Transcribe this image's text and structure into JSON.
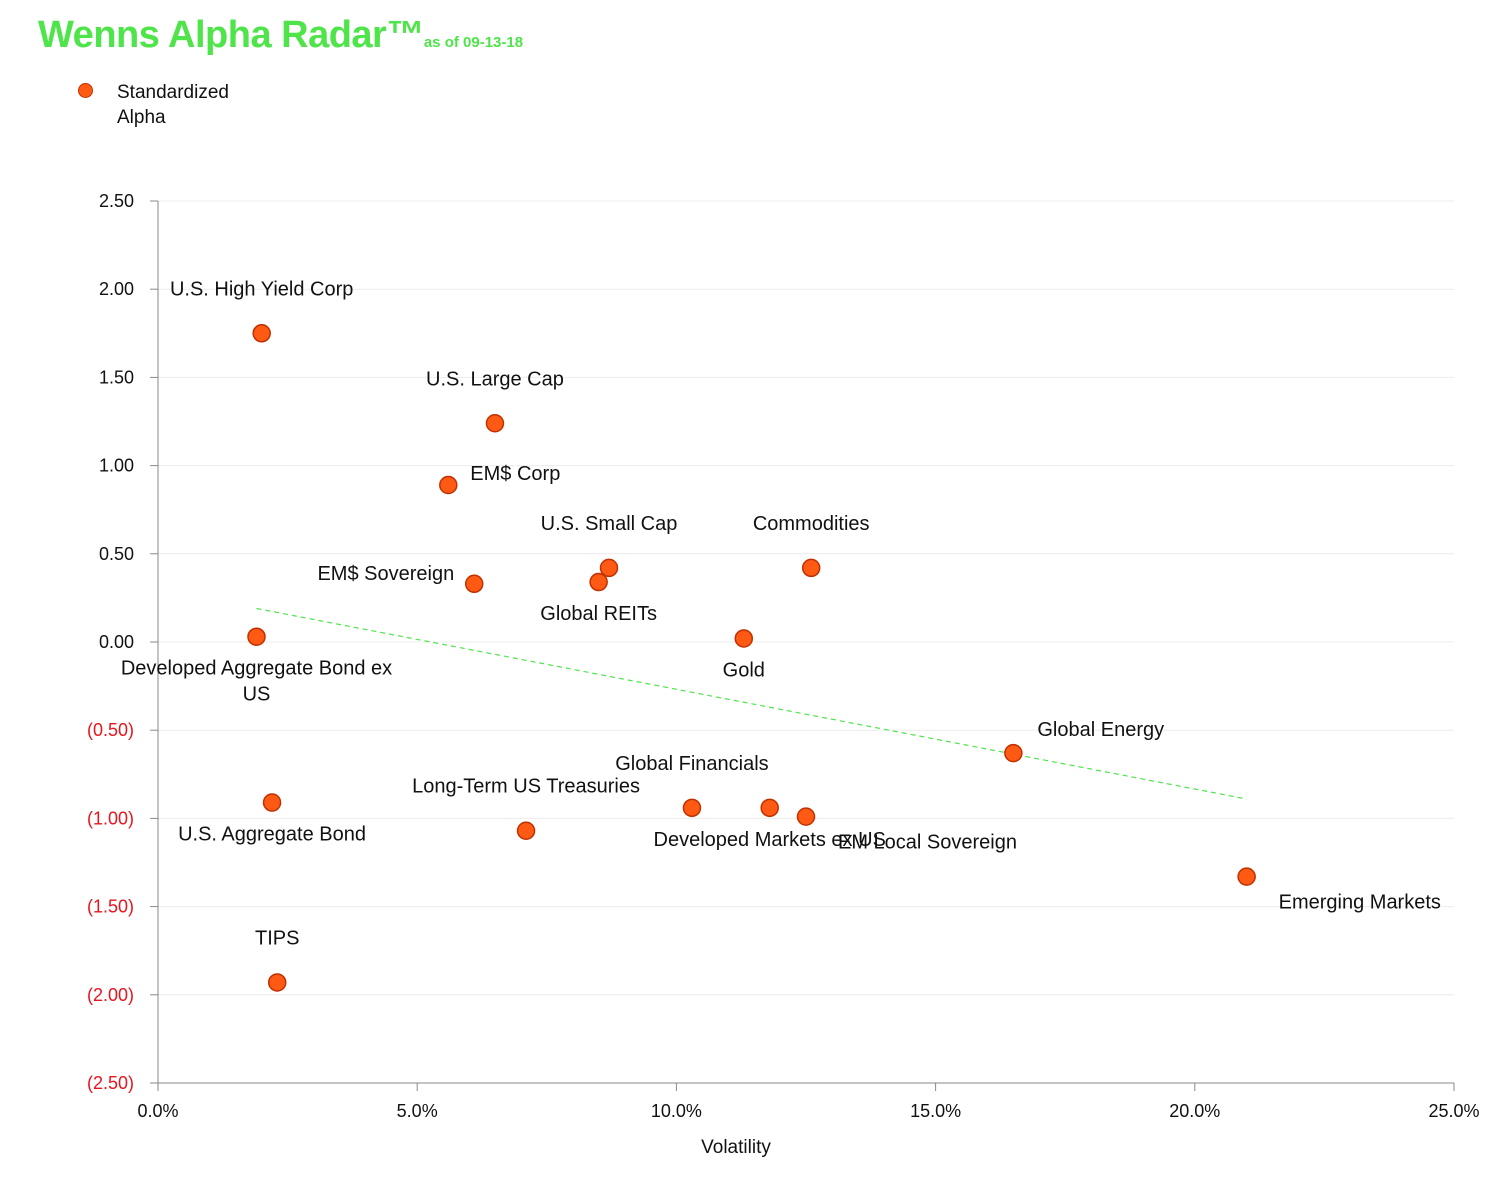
{
  "title": {
    "main": "Wenns Alpha Radar™",
    "sub": "as of 09-13-18"
  },
  "legend": {
    "label": "Standardized Alpha"
  },
  "colors": {
    "title": "#4ee44a",
    "point": "#ff5a14",
    "point_edge": "#c03000",
    "trend": "#4ee44a",
    "negative_tick": "#e8141e"
  },
  "chart_data": {
    "type": "scatter",
    "xlabel": "Volatility",
    "ylabel": "",
    "xlim": [
      0,
      25
    ],
    "ylim": [
      -2.5,
      2.5
    ],
    "x_ticks": [
      0,
      5,
      10,
      15,
      20,
      25
    ],
    "x_tick_labels": [
      "0.0%",
      "5.0%",
      "10.0%",
      "15.0%",
      "20.0%",
      "25.0%"
    ],
    "y_ticks": [
      2.5,
      2.0,
      1.5,
      1.0,
      0.5,
      0.0,
      -0.5,
      -1.0,
      -1.5,
      -2.0,
      -2.5
    ],
    "y_tick_labels": [
      "2.50",
      "2.00",
      "1.50",
      "1.00",
      "0.50",
      "0.00",
      "(0.50)",
      "(1.00)",
      "(1.50)",
      "(2.00)",
      "(2.50)"
    ],
    "series": [
      {
        "name": "Standardized Alpha",
        "points": [
          {
            "name": "U.S. High Yield Corp",
            "x": 2.0,
            "y": 1.75,
            "label_pos": "above"
          },
          {
            "name": "U.S. Large Cap",
            "x": 6.5,
            "y": 1.24,
            "label_pos": "above"
          },
          {
            "name": "EM$ Corp",
            "x": 5.6,
            "y": 0.89,
            "label_pos": "right"
          },
          {
            "name": "U.S. Small Cap",
            "x": 8.7,
            "y": 0.42,
            "label_pos": "above"
          },
          {
            "name": "Commodities",
            "x": 12.6,
            "y": 0.42,
            "label_pos": "above"
          },
          {
            "name": "EM$ Sovereign",
            "x": 6.1,
            "y": 0.33,
            "label_pos": "left"
          },
          {
            "name": "Global REITs",
            "x": 8.5,
            "y": 0.34,
            "label_pos": "below"
          },
          {
            "name": "Developed Aggregate Bond ex US",
            "x": 1.9,
            "y": 0.03,
            "label_pos": "below"
          },
          {
            "name": "Gold",
            "x": 11.3,
            "y": 0.02,
            "label_pos": "below"
          },
          {
            "name": "Global Energy",
            "x": 16.5,
            "y": -0.63,
            "label_pos": "above-right"
          },
          {
            "name": "U.S. Aggregate Bond",
            "x": 2.2,
            "y": -0.91,
            "label_pos": "below"
          },
          {
            "name": "Long-Term US Treasuries",
            "x": 7.1,
            "y": -1.07,
            "label_pos": "above"
          },
          {
            "name": "Global Financials",
            "x": 10.3,
            "y": -0.94,
            "label_pos": "above"
          },
          {
            "name": "Developed Markets ex US",
            "x": 11.8,
            "y": -0.94,
            "label_pos": "below"
          },
          {
            "name": "EM Local Sovereign",
            "x": 12.5,
            "y": -0.99,
            "label_pos": "below-right"
          },
          {
            "name": "Emerging Markets",
            "x": 21.0,
            "y": -1.33,
            "label_pos": "below-right"
          },
          {
            "name": "TIPS",
            "x": 2.3,
            "y": -1.93,
            "label_pos": "above"
          }
        ]
      }
    ],
    "trendline": {
      "x": [
        1.9,
        21.0
      ],
      "y": [
        0.19,
        -0.89
      ],
      "style": "dashed"
    },
    "grid": true,
    "legend": "top-left"
  }
}
